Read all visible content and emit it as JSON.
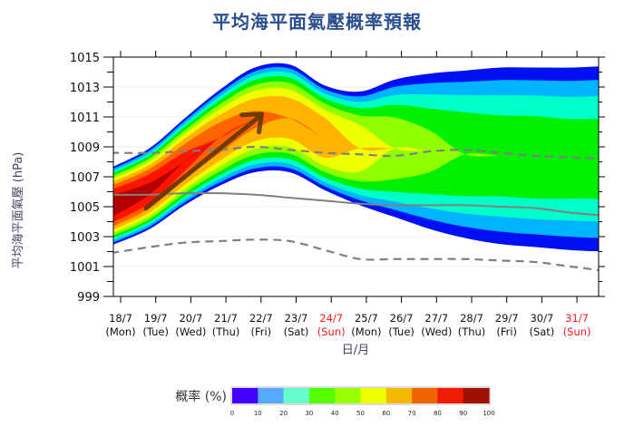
{
  "title": "平均海平面氣壓概率預報",
  "chart_data": {
    "type": "heatmap",
    "title": "平均海平面氣壓概率預報",
    "xlabel": "日/月",
    "ylabel": "平均海平面氣壓 (hPa)",
    "ylim": [
      999,
      1015
    ],
    "yticks": [
      999,
      1001,
      1003,
      1005,
      1007,
      1009,
      1011,
      1013,
      1015
    ],
    "grid": "horizontal",
    "x": [
      {
        "date": "18/7",
        "day": "(Mon)",
        "holiday": false
      },
      {
        "date": "19/7",
        "day": "(Tue)",
        "holiday": false
      },
      {
        "date": "20/7",
        "day": "(Wed)",
        "holiday": false
      },
      {
        "date": "21/7",
        "day": "(Thu)",
        "holiday": false
      },
      {
        "date": "22/7",
        "day": "(Fri)",
        "holiday": false
      },
      {
        "date": "23/7",
        "day": "(Sat)",
        "holiday": false
      },
      {
        "date": "24/7",
        "day": "(Sun)",
        "holiday": true
      },
      {
        "date": "25/7",
        "day": "(Mon)",
        "holiday": false
      },
      {
        "date": "26/7",
        "day": "(Tue)",
        "holiday": false
      },
      {
        "date": "27/7",
        "day": "(Wed)",
        "holiday": false
      },
      {
        "date": "28/7",
        "day": "(Thu)",
        "holiday": false
      },
      {
        "date": "29/7",
        "day": "(Fri)",
        "holiday": false
      },
      {
        "date": "30/7",
        "day": "(Sat)",
        "holiday": false
      },
      {
        "date": "31/7",
        "day": "(Sun)",
        "holiday": true
      }
    ],
    "xrange_days": [
      0,
      14.2
    ],
    "probability_bands": {
      "levels": [
        0,
        10,
        20,
        30,
        40,
        50,
        60,
        70,
        80,
        90,
        100
      ],
      "colors": [
        "#0010f5",
        "#00b4ff",
        "#00ffc8",
        "#00f000",
        "#90ff00",
        "#f0ff00",
        "#ffb400",
        "#ff6400",
        "#ff1400",
        "#b40000"
      ],
      "center": [
        1005.0,
        1006.2,
        1008.0,
        1009.6,
        1010.8,
        1010.9,
        1009.6,
        1008.9,
        1008.9,
        1008.7,
        1008.5,
        1008.4,
        1008.3,
        1008.2,
        1008.2
      ],
      "halfwidth_10pct": [
        2.6,
        2.7,
        2.9,
        3.2,
        3.5,
        3.6,
        3.5,
        3.8,
        4.6,
        5.2,
        5.6,
        5.9,
        6.0,
        6.1,
        6.2
      ],
      "peak_probability": [
        98,
        92,
        84,
        78,
        72,
        70,
        70,
        60,
        50,
        43,
        40,
        38,
        38,
        37,
        37
      ]
    },
    "series": [
      {
        "name": "upper-dashed",
        "style": "dashed",
        "color": "#808080",
        "values": [
          1008.6,
          1008.6,
          1008.7,
          1008.8,
          1009.0,
          1008.8,
          1008.6,
          1008.5,
          1008.4,
          1008.7,
          1008.8,
          1008.6,
          1008.4,
          1008.3,
          1008.2
        ]
      },
      {
        "name": "mean-solid",
        "style": "solid",
        "color": "#808080",
        "values": [
          1005.8,
          1005.8,
          1005.9,
          1005.9,
          1005.8,
          1005.6,
          1005.4,
          1005.2,
          1005.1,
          1005.1,
          1005.1,
          1005.0,
          1004.9,
          1004.6,
          1004.4
        ]
      },
      {
        "name": "lower-dashed",
        "style": "dashed",
        "color": "#808080",
        "values": [
          1001.9,
          1002.3,
          1002.6,
          1002.7,
          1002.8,
          1002.7,
          1002.1,
          1001.5,
          1001.5,
          1001.5,
          1001.5,
          1001.4,
          1001.3,
          1001.0,
          1000.7
        ]
      }
    ],
    "trend_arrow": {
      "from": {
        "x_day": 0.9,
        "y": 1004.9
      },
      "to": {
        "x_day": 4.2,
        "y": 1011.2
      },
      "color": "#5a3200"
    },
    "colorbar": {
      "title": "概率 (%)",
      "ticks": [
        "0",
        "10",
        "20",
        "30",
        "40",
        "50",
        "60",
        "70",
        "80",
        "90",
        "100"
      ],
      "colors": [
        "#4400ff",
        "#55aaff",
        "#66ffcc",
        "#55ff00",
        "#99ff00",
        "#eeff00",
        "#f5b800",
        "#f06400",
        "#ee1c00",
        "#a01000"
      ]
    }
  }
}
